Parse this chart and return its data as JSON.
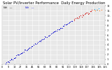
{
  "title": "Solar PV/Inverter Performance  Daily Energy Production",
  "bg_color": "#ffffff",
  "plot_bg_color": "#e8e8e8",
  "grid_color": "#ffffff",
  "text_color": "#000000",
  "blue_dot_color": "#0000cc",
  "red_dot_color": "#cc0000",
  "orange_dot_color": "#ff6600",
  "cyan_dot_color": "#00aaff",
  "title_fontsize": 3.8,
  "tick_fontsize": 2.5,
  "ylim": [
    0,
    12
  ],
  "xlim": [
    0,
    155
  ],
  "y_ticks": [
    0,
    1,
    2,
    3,
    4,
    5,
    6,
    7,
    8,
    9,
    10,
    11,
    12
  ],
  "y_tick_labels": [
    "0",
    "1.",
    "2.",
    "3.",
    "4.",
    "5.",
    "6.",
    "7.",
    "8.",
    "9.",
    "10.",
    "11.",
    "12"
  ]
}
